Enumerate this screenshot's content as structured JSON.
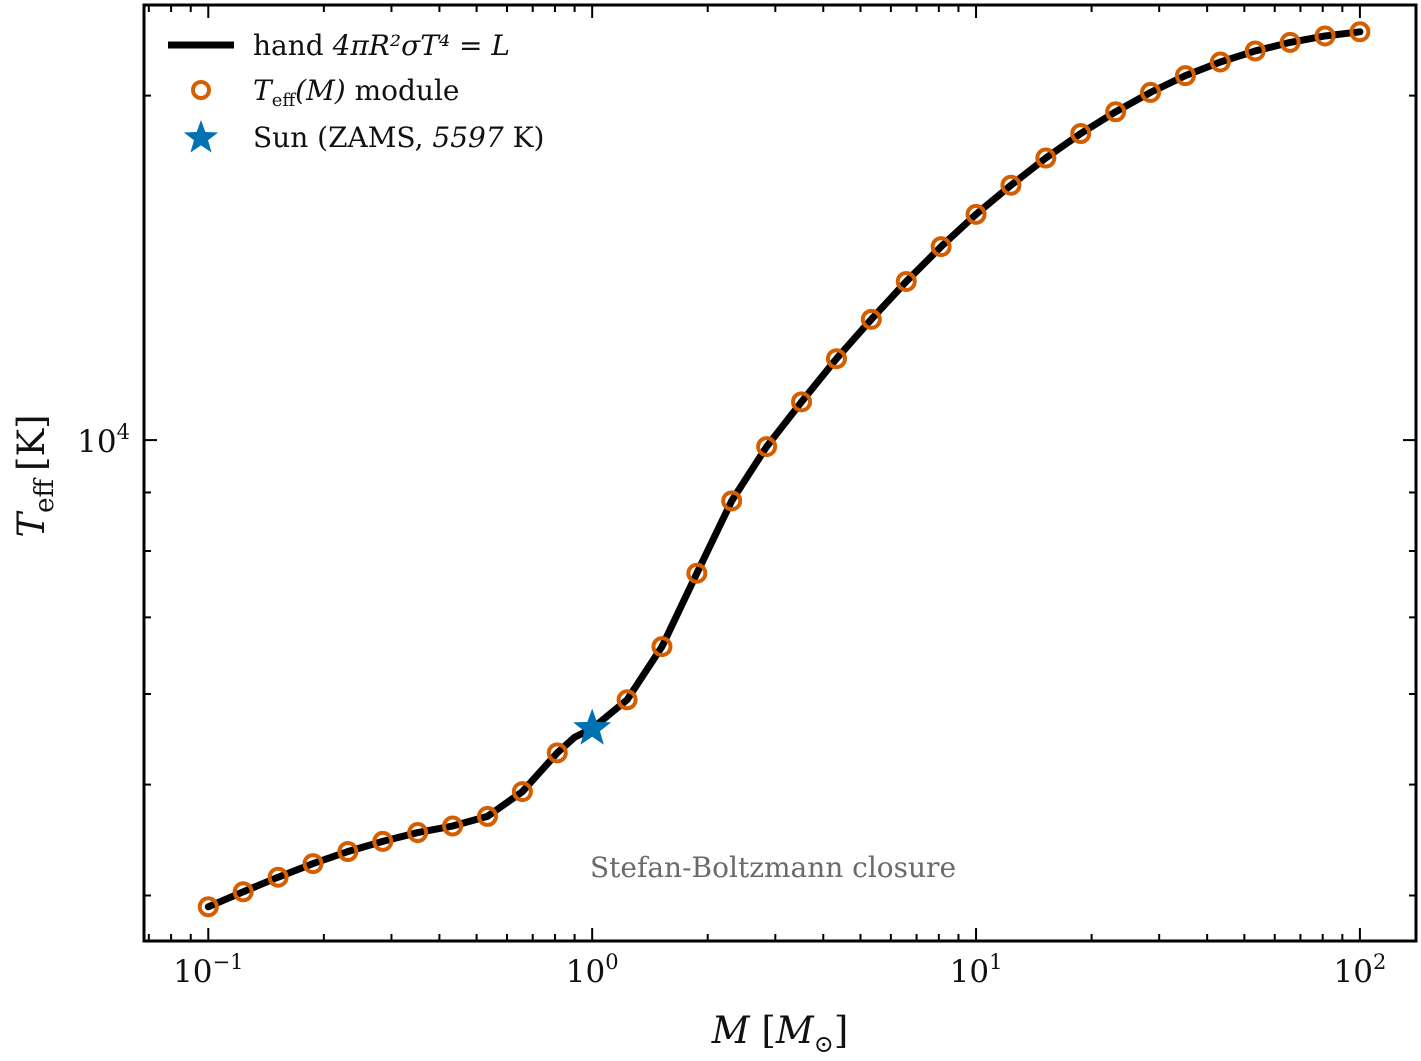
{
  "chart_data": {
    "type": "line",
    "xscale": "log",
    "yscale": "log",
    "xlim": [
      0.068,
      140
    ],
    "ylim": [
      3650,
      24000
    ],
    "x_ticks": [
      {
        "value": 0.1,
        "base": "10",
        "exp": "−1"
      },
      {
        "value": 1,
        "base": "10",
        "exp": "0"
      },
      {
        "value": 10,
        "base": "10",
        "exp": "1"
      },
      {
        "value": 100,
        "base": "10",
        "exp": "2"
      }
    ],
    "y_ticks": [
      {
        "value": 10000,
        "base": "10",
        "exp": "4"
      }
    ],
    "xlabel": {
      "var": "M",
      "bracket_open": "[",
      "sub_var": "M",
      "sub": "⊙",
      "bracket_close": "]"
    },
    "ylabel": {
      "var": "T",
      "sub": "eff",
      "unit": "[K]"
    },
    "annotation": "Stefan-Boltzmann closure",
    "legend": {
      "placement": "top-left",
      "entries": [
        {
          "prefix": "hand ",
          "math": "4πR²σT⁴ = L"
        },
        {
          "math": "T",
          "math_sub": "eff",
          "math_tail": "(M)",
          "suffix": " module"
        },
        {
          "prefix": "Sun (ZAMS, ",
          "math": "5597",
          "suffix": " K)"
        }
      ]
    },
    "series": [
      {
        "name": "hand 4πR²σT⁴ = L",
        "style": "line",
        "color": "#000000",
        "x": [
          0.1,
          0.1233,
          0.152,
          0.1874,
          0.231,
          0.2848,
          0.3511,
          0.4329,
          0.5337,
          0.658,
          0.8112,
          0.9,
          1.0,
          1.233,
          1.52,
          1.874,
          2.31,
          2.848,
          3.511,
          4.329,
          5.337,
          6.58,
          8.112,
          10.0,
          12.33,
          15.2,
          18.74,
          23.1,
          28.48,
          35.11,
          43.29,
          53.37,
          65.8,
          81.12,
          100.0
        ],
        "y": [
          3910,
          4030,
          4150,
          4265,
          4370,
          4460,
          4540,
          4600,
          4690,
          4930,
          5330,
          5500,
          5597,
          5930,
          6600,
          7650,
          8850,
          9870,
          10800,
          11780,
          12750,
          13760,
          14760,
          15750,
          16700,
          17640,
          18530,
          19360,
          20130,
          20820,
          21400,
          21880,
          22260,
          22550,
          22740
        ]
      },
      {
        "name": "Teff(M) module",
        "style": "markers",
        "marker": "open-circle",
        "color": "#d55e00",
        "x": [
          0.1,
          0.1233,
          0.152,
          0.1874,
          0.231,
          0.2848,
          0.3511,
          0.4329,
          0.5337,
          0.658,
          0.8112,
          1.233,
          1.52,
          1.874,
          2.31,
          2.848,
          3.511,
          4.329,
          5.337,
          6.58,
          8.112,
          10.0,
          12.33,
          15.2,
          18.74,
          23.1,
          28.48,
          35.11,
          43.29,
          53.37,
          65.8,
          81.12,
          100.0
        ],
        "y": [
          3910,
          4030,
          4150,
          4265,
          4370,
          4460,
          4540,
          4600,
          4690,
          4930,
          5330,
          5930,
          6600,
          7650,
          8850,
          9870,
          10800,
          11780,
          12750,
          13760,
          14760,
          15750,
          16700,
          17640,
          18530,
          19360,
          20130,
          20820,
          21400,
          21880,
          22260,
          22550,
          22740
        ]
      },
      {
        "name": "Sun (ZAMS, 5597 K)",
        "style": "marker",
        "marker": "star",
        "color": "#0072b2",
        "x": [
          1.0
        ],
        "y": [
          5597
        ]
      }
    ]
  }
}
